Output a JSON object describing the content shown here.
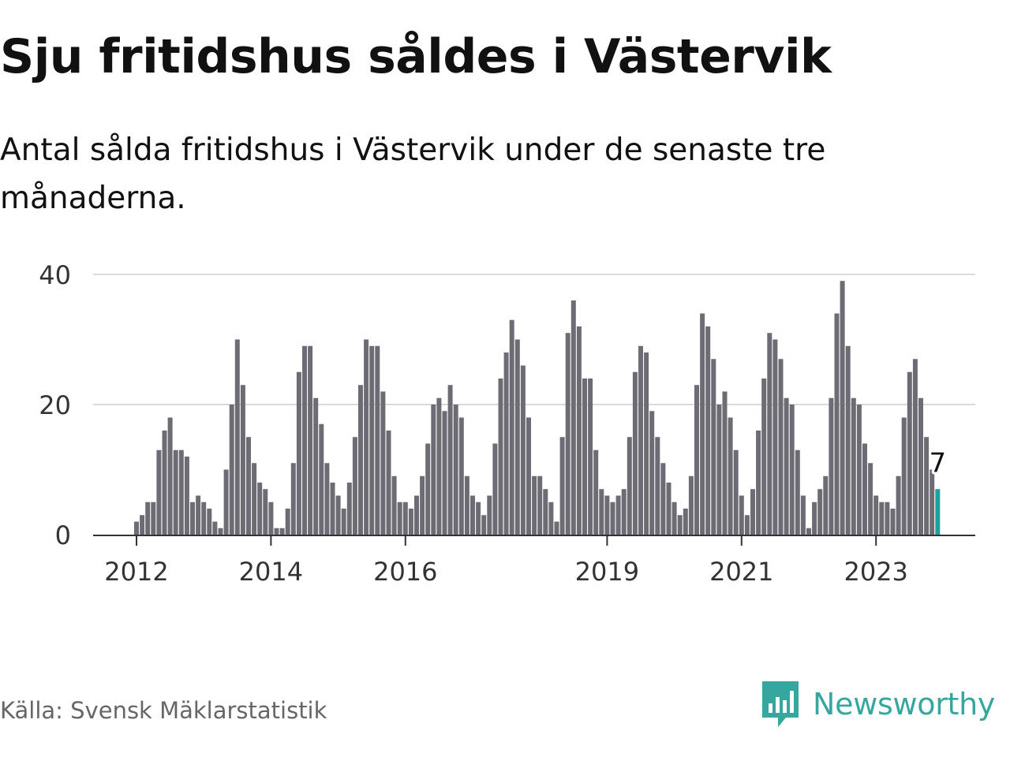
{
  "header": {
    "title": "Sju fritidshus såldes i Västervik",
    "subtitle": "Antal sålda fritidshus i Västervik under de senaste tre månaderna."
  },
  "footer": {
    "source": "Källa: Svensk Mäklarstatistik",
    "brand": "Newsworthy",
    "brand_color": "#36a79f"
  },
  "chart_data": {
    "type": "bar",
    "start_period": "2012-01",
    "x_tick_labels": [
      "2012",
      "2014",
      "2016",
      "2019",
      "2021",
      "2023"
    ],
    "y_ticks": [
      0,
      20,
      40
    ],
    "ylim": [
      0,
      40
    ],
    "grid": true,
    "bar_color": "#6d6c74",
    "highlight_color": "#1aa39a",
    "highlight_label": "7",
    "values": [
      2,
      3,
      5,
      5,
      13,
      16,
      18,
      13,
      13,
      12,
      5,
      6,
      5,
      4,
      2,
      1,
      10,
      20,
      30,
      23,
      15,
      11,
      8,
      7,
      5,
      1,
      1,
      4,
      11,
      25,
      29,
      29,
      21,
      17,
      11,
      8,
      6,
      4,
      8,
      15,
      23,
      30,
      29,
      29,
      22,
      16,
      9,
      5,
      5,
      4,
      6,
      9,
      14,
      20,
      21,
      19,
      23,
      20,
      18,
      9,
      6,
      5,
      3,
      6,
      14,
      24,
      28,
      33,
      30,
      26,
      18,
      9,
      9,
      7,
      5,
      2,
      15,
      31,
      36,
      32,
      24,
      24,
      13,
      7,
      6,
      5,
      6,
      7,
      15,
      25,
      29,
      28,
      19,
      15,
      11,
      8,
      5,
      3,
      4,
      9,
      23,
      34,
      32,
      27,
      20,
      22,
      18,
      13,
      6,
      3,
      7,
      16,
      24,
      31,
      30,
      27,
      21,
      20,
      13,
      6,
      1,
      5,
      7,
      9,
      21,
      34,
      39,
      29,
      21,
      20,
      14,
      11,
      6,
      5,
      5,
      4,
      9,
      18,
      25,
      27,
      21,
      15,
      10,
      7
    ]
  }
}
